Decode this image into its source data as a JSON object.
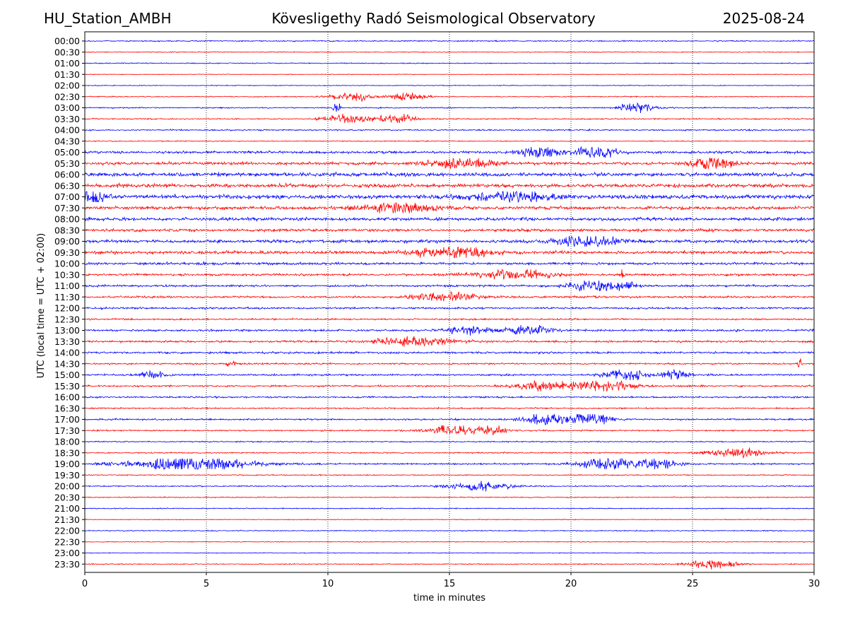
{
  "header": {
    "station": "HU_Station_AMBH",
    "observatory": "Kövesligethy Radó Seismological Observatory",
    "date": "2025-08-24"
  },
  "chart_data": {
    "type": "line",
    "title": "Kövesligethy Radó Seismological Observatory",
    "xlabel": "time in minutes",
    "ylabel": "UTC (local time = UTC + 02:00)",
    "xlim": [
      0,
      30
    ],
    "xticks": [
      "0",
      "5",
      "10",
      "15",
      "20",
      "25",
      "30"
    ],
    "xtick_values": [
      0,
      5,
      10,
      15,
      20,
      25,
      30
    ],
    "grid": "vertical dotted at x ticks",
    "row_labels": [
      "00:00",
      "00:30",
      "01:00",
      "01:30",
      "02:00",
      "02:30",
      "03:00",
      "03:30",
      "04:00",
      "04:30",
      "05:00",
      "05:30",
      "06:00",
      "06:30",
      "07:00",
      "07:30",
      "08:00",
      "08:30",
      "09:00",
      "09:30",
      "10:00",
      "10:30",
      "11:00",
      "11:30",
      "12:00",
      "12:30",
      "13:00",
      "13:30",
      "14:00",
      "14:30",
      "15:00",
      "15:30",
      "16:00",
      "16:30",
      "17:00",
      "17:30",
      "18:00",
      "18:30",
      "19:00",
      "19:30",
      "20:00",
      "20:30",
      "21:00",
      "21:30",
      "22:00",
      "22:30",
      "23:00",
      "23:30"
    ],
    "trace_colors": [
      "#0000ff",
      "#ff0000"
    ],
    "base_noise": [
      0.6,
      0.4,
      0.5,
      0.35,
      0.4,
      0.5,
      0.6,
      0.6,
      0.7,
      0.5,
      1.2,
      1.4,
      1.8,
      1.8,
      2.0,
      1.6,
      1.6,
      1.4,
      1.5,
      1.5,
      1.2,
      1.1,
      1.0,
      1.0,
      0.9,
      0.8,
      1.0,
      1.0,
      1.0,
      0.8,
      0.9,
      0.9,
      0.8,
      0.7,
      0.8,
      0.7,
      0.6,
      0.6,
      0.8,
      0.5,
      0.6,
      0.5,
      0.5,
      0.4,
      0.5,
      0.4,
      0.4,
      0.5
    ],
    "events": [
      {
        "row": 5,
        "t": 11.0,
        "amp": 5,
        "dur": 0.8
      },
      {
        "row": 5,
        "t": 13.3,
        "amp": 5,
        "dur": 0.7
      },
      {
        "row": 6,
        "t": 10.4,
        "amp": 7,
        "dur": 0.15
      },
      {
        "row": 6,
        "t": 22.7,
        "amp": 6,
        "dur": 0.6
      },
      {
        "row": 7,
        "t": 10.8,
        "amp": 5,
        "dur": 0.9
      },
      {
        "row": 7,
        "t": 12.8,
        "amp": 5,
        "dur": 0.7
      },
      {
        "row": 10,
        "t": 18.8,
        "amp": 6,
        "dur": 0.8
      },
      {
        "row": 10,
        "t": 21.0,
        "amp": 6,
        "dur": 0.8
      },
      {
        "row": 11,
        "t": 15.5,
        "amp": 6,
        "dur": 1.2
      },
      {
        "row": 11,
        "t": 25.8,
        "amp": 8,
        "dur": 0.8
      },
      {
        "row": 14,
        "t": 0.4,
        "amp": 9,
        "dur": 0.5
      },
      {
        "row": 14,
        "t": 17.5,
        "amp": 6,
        "dur": 1.5
      },
      {
        "row": 15,
        "t": 13.0,
        "amp": 5,
        "dur": 1.5
      },
      {
        "row": 18,
        "t": 20.7,
        "amp": 6,
        "dur": 1.2
      },
      {
        "row": 19,
        "t": 15.0,
        "amp": 6,
        "dur": 1.5
      },
      {
        "row": 21,
        "t": 17.6,
        "amp": 5,
        "dur": 1.5
      },
      {
        "row": 21,
        "t": 22.1,
        "amp": 7,
        "dur": 0.1
      },
      {
        "row": 22,
        "t": 20.7,
        "amp": 6,
        "dur": 0.8
      },
      {
        "row": 22,
        "t": 22.0,
        "amp": 5,
        "dur": 0.6
      },
      {
        "row": 23,
        "t": 14.8,
        "amp": 5,
        "dur": 1.2
      },
      {
        "row": 26,
        "t": 15.7,
        "amp": 5,
        "dur": 0.8
      },
      {
        "row": 26,
        "t": 18.2,
        "amp": 5,
        "dur": 1.0
      },
      {
        "row": 27,
        "t": 13.5,
        "amp": 5,
        "dur": 1.5
      },
      {
        "row": 29,
        "t": 6.1,
        "amp": 5,
        "dur": 0.2
      },
      {
        "row": 29,
        "t": 29.4,
        "amp": 5,
        "dur": 0.1
      },
      {
        "row": 30,
        "t": 2.8,
        "amp": 5,
        "dur": 0.4
      },
      {
        "row": 30,
        "t": 22.2,
        "amp": 6,
        "dur": 0.8
      },
      {
        "row": 30,
        "t": 24.2,
        "amp": 5,
        "dur": 0.6
      },
      {
        "row": 31,
        "t": 21.2,
        "amp": 7,
        "dur": 1.3
      },
      {
        "row": 31,
        "t": 18.6,
        "amp": 5,
        "dur": 1.0
      },
      {
        "row": 34,
        "t": 19.0,
        "amp": 6,
        "dur": 0.9
      },
      {
        "row": 34,
        "t": 20.8,
        "amp": 6,
        "dur": 0.8
      },
      {
        "row": 35,
        "t": 15.0,
        "amp": 5,
        "dur": 0.9
      },
      {
        "row": 35,
        "t": 16.6,
        "amp": 5,
        "dur": 0.7
      },
      {
        "row": 37,
        "t": 26.8,
        "amp": 5,
        "dur": 1.2
      },
      {
        "row": 38,
        "t": 4.2,
        "amp": 7,
        "dur": 2.5
      },
      {
        "row": 38,
        "t": 21.5,
        "amp": 6,
        "dur": 1.2
      },
      {
        "row": 38,
        "t": 23.6,
        "amp": 5,
        "dur": 0.8
      },
      {
        "row": 40,
        "t": 16.3,
        "amp": 5,
        "dur": 1.3
      },
      {
        "row": 47,
        "t": 25.8,
        "amp": 5,
        "dur": 0.9
      }
    ]
  }
}
